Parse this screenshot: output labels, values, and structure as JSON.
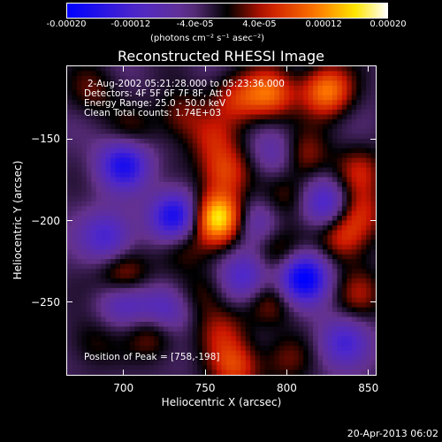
{
  "colors": {
    "background": "#000000",
    "foreground": "#ffffff"
  },
  "colorbar": {
    "ticks": [
      "-0.00020",
      "-0.00012",
      "-4.0e-05",
      "4.0e-05",
      "0.00012",
      "0.00020"
    ],
    "unit_label": "(photons cm⁻² s⁻¹ asec⁻²)"
  },
  "title": "Reconstructed RHESSI Image",
  "annotations": {
    "time": "2-Aug-2002 05:21:28.000 to 05:23:36.000",
    "detectors": "Detectors: 4F 5F 6F 7F 8F, Att 0",
    "energy": "Energy Range: 25.0 - 50.0 keV",
    "clean": "Clean     Total counts: 1.74E+03",
    "peak": "Position of Peak = [758,-198]"
  },
  "footer": "20-Apr-2013 06:02",
  "chart_data": {
    "type": "heatmap",
    "title": "Reconstructed RHESSI Image",
    "xlabel": "Heliocentric X (arcsec)",
    "ylabel": "Heliocentric Y (arcsec)",
    "xlim": [
      665,
      855
    ],
    "ylim": [
      -295,
      -105
    ],
    "x_ticks": [
      700,
      750,
      800,
      850
    ],
    "y_ticks": [
      -150,
      -200,
      -250
    ],
    "colorbar_range": [
      -0.0002,
      0.0002
    ],
    "colorbar_ticks": [
      -0.0002,
      -0.00012,
      -4e-05,
      4e-05,
      0.00012,
      0.0002
    ],
    "colormap": "rhessi blue-purple-red-yellow-white",
    "peak": [
      758,
      -198
    ],
    "blobs": [
      {
        "x": 758,
        "y": -198,
        "value": 0.0002
      },
      {
        "x": 762,
        "y": -170,
        "value": 0.0001
      },
      {
        "x": 790,
        "y": -122,
        "value": 0.00012
      },
      {
        "x": 825,
        "y": -120,
        "value": 0.00014
      },
      {
        "x": 770,
        "y": -125,
        "value": 8e-05
      },
      {
        "x": 735,
        "y": -135,
        "value": 6e-05
      },
      {
        "x": 680,
        "y": -120,
        "value": 5e-05
      },
      {
        "x": 705,
        "y": -145,
        "value": 4e-05
      },
      {
        "x": 755,
        "y": -150,
        "value": 6e-05
      },
      {
        "x": 810,
        "y": -160,
        "value": 8e-05
      },
      {
        "x": 845,
        "y": -170,
        "value": 7e-05
      },
      {
        "x": 845,
        "y": -195,
        "value": 8e-05
      },
      {
        "x": 800,
        "y": -185,
        "value": 5e-05
      },
      {
        "x": 735,
        "y": -215,
        "value": 6e-05
      },
      {
        "x": 795,
        "y": -220,
        "value": 7e-05
      },
      {
        "x": 835,
        "y": -210,
        "value": 9e-05
      },
      {
        "x": 700,
        "y": -235,
        "value": 9e-05
      },
      {
        "x": 750,
        "y": -245,
        "value": 5e-05
      },
      {
        "x": 790,
        "y": -250,
        "value": 6e-05
      },
      {
        "x": 845,
        "y": -245,
        "value": 6e-05
      },
      {
        "x": 718,
        "y": -270,
        "value": 7e-05
      },
      {
        "x": 760,
        "y": -268,
        "value": 6e-05
      },
      {
        "x": 800,
        "y": -285,
        "value": 5e-05
      },
      {
        "x": 768,
        "y": -290,
        "value": 0.0001
      },
      {
        "x": 680,
        "y": -275,
        "value": 4e-05
      },
      {
        "x": 700,
        "y": -165,
        "value": -0.00014
      },
      {
        "x": 732,
        "y": -198,
        "value": -0.00016
      },
      {
        "x": 810,
        "y": -235,
        "value": -0.00018
      },
      {
        "x": 690,
        "y": -210,
        "value": -0.0001
      },
      {
        "x": 700,
        "y": -250,
        "value": -8e-05
      },
      {
        "x": 775,
        "y": -235,
        "value": -0.0001
      },
      {
        "x": 725,
        "y": -255,
        "value": -9e-05
      },
      {
        "x": 825,
        "y": -190,
        "value": -0.00011
      },
      {
        "x": 835,
        "y": -275,
        "value": -9e-05
      },
      {
        "x": 780,
        "y": -200,
        "value": -6e-05
      },
      {
        "x": 795,
        "y": -160,
        "value": -7e-05
      }
    ]
  }
}
